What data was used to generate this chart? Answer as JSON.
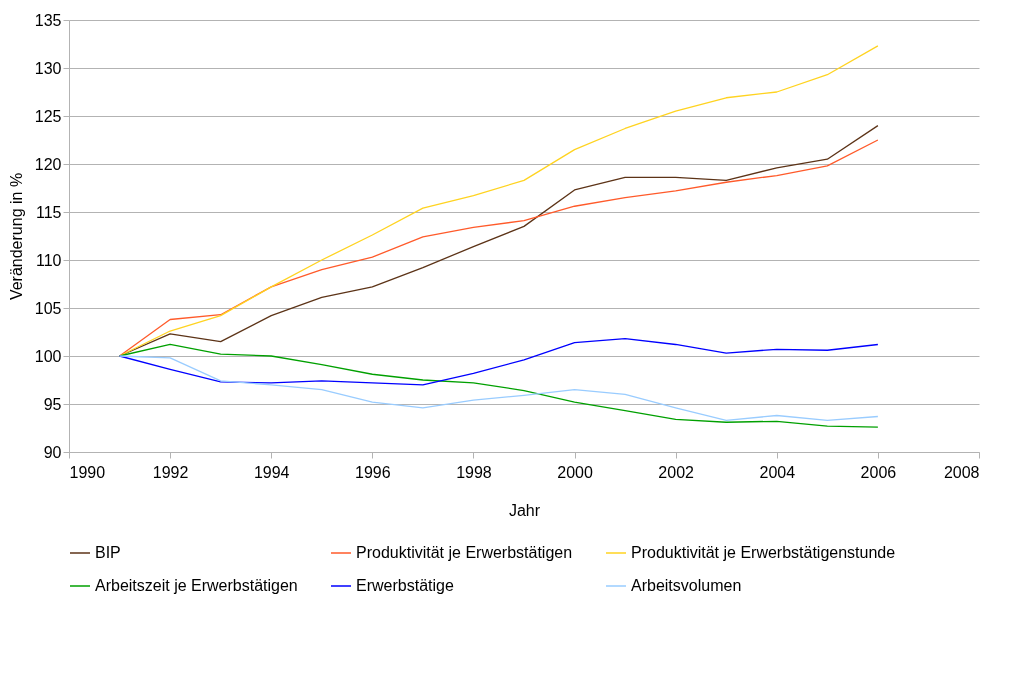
{
  "chart_data": {
    "type": "line",
    "xlabel": "Jahr",
    "ylabel": "Veränderung in %",
    "x": [
      1991,
      1992,
      1993,
      1994,
      1995,
      1996,
      1997,
      1998,
      1999,
      2000,
      2001,
      2002,
      2003,
      2004,
      2005,
      2006
    ],
    "xlim": [
      1990,
      2008
    ],
    "xticks": [
      1990,
      1992,
      1994,
      1996,
      1998,
      2000,
      2002,
      2004,
      2006,
      2008
    ],
    "ylim": [
      90,
      135
    ],
    "yticks": [
      90,
      95,
      100,
      105,
      110,
      115,
      120,
      125,
      130,
      135
    ],
    "grid": "y",
    "legend": "bottom",
    "marker": "none",
    "line_style": "solid",
    "series": [
      {
        "name": "BIP",
        "color": "#5c3317",
        "values": [
          100,
          102.3,
          101.5,
          104.2,
          106.1,
          107.2,
          109.2,
          111.4,
          113.5,
          117.3,
          118.6,
          118.6,
          118.3,
          119.6,
          120.5,
          124.0
        ]
      },
      {
        "name": "Produktivität je Erwerbstätigen",
        "color": "#ff5a2a",
        "values": [
          100,
          103.8,
          104.3,
          107.2,
          109.0,
          110.3,
          112.4,
          113.4,
          114.1,
          115.6,
          116.5,
          117.2,
          118.1,
          118.8,
          119.8,
          122.5
        ]
      },
      {
        "name": "Produktivität je Erwerbstätigenstunde",
        "color": "#ffd320",
        "values": [
          100,
          102.6,
          104.2,
          107.2,
          110.0,
          112.6,
          115.4,
          116.7,
          118.3,
          121.5,
          123.7,
          125.5,
          126.9,
          127.5,
          129.3,
          132.3
        ]
      },
      {
        "name": "Arbeitszeit je Erwerbstätigen",
        "color": "#00a000",
        "values": [
          100,
          101.2,
          100.2,
          100.0,
          99.1,
          98.1,
          97.5,
          97.2,
          96.4,
          95.2,
          94.3,
          93.4,
          93.1,
          93.2,
          92.7,
          92.6
        ]
      },
      {
        "name": "Erwerbstätige",
        "color": "#0000ff",
        "values": [
          100,
          98.6,
          97.3,
          97.2,
          97.4,
          97.2,
          97.0,
          98.2,
          99.6,
          101.4,
          101.8,
          101.2,
          100.3,
          100.7,
          100.6,
          101.2
        ]
      },
      {
        "name": "Arbeitsvolumen",
        "color": "#99ccff",
        "values": [
          100,
          99.8,
          97.4,
          97.0,
          96.5,
          95.2,
          94.6,
          95.4,
          95.9,
          96.5,
          96.0,
          94.6,
          93.3,
          93.8,
          93.3,
          93.7
        ]
      }
    ]
  }
}
